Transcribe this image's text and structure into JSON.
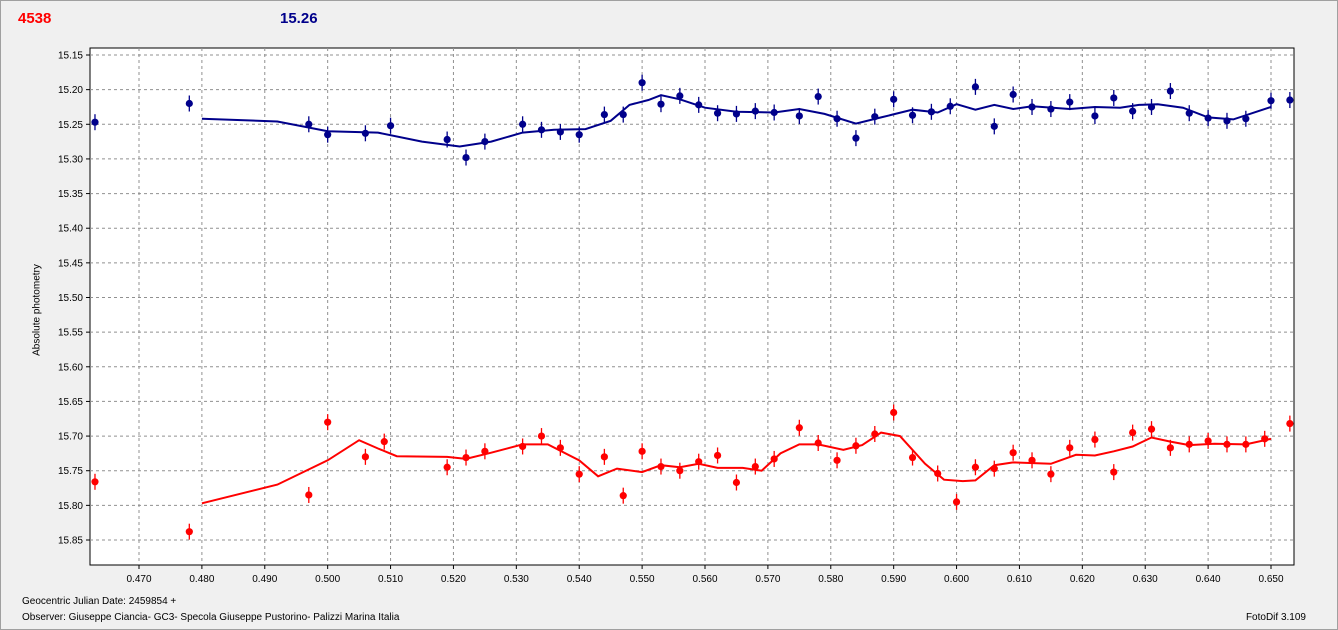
{
  "header": {
    "left_value": "4538",
    "right_value": "15.26"
  },
  "footer": {
    "jd_label": "Geocentric Julian Date: 2459854 +",
    "observer": "Observer: Giuseppe Ciancia- GC3- Specola Giuseppe Pustorino- Palizzi Marina Italia",
    "software": "FotoDif 3.109"
  },
  "colors": {
    "series_red": "#ff0000",
    "series_blue": "#00008b",
    "grid": "#909090",
    "background": "#f0f0f0"
  },
  "chart_data": {
    "type": "scatter",
    "ylabel": "Absolute photometry",
    "xlabel": "",
    "xlim": [
      0.4625,
      0.6535
    ],
    "ylim": [
      15.15,
      15.89
    ],
    "y_inverted": true,
    "xticks": [
      "0.470",
      "0.480",
      "0.490",
      "0.500",
      "0.510",
      "0.520",
      "0.530",
      "0.540",
      "0.550",
      "0.560",
      "0.570",
      "0.580",
      "0.590",
      "0.600",
      "0.610",
      "0.620",
      "0.630",
      "0.640",
      "0.650"
    ],
    "yticks": [
      "15.15",
      "15.20",
      "15.25",
      "15.30",
      "15.35",
      "15.40",
      "15.45",
      "15.50",
      "15.55",
      "15.60",
      "15.65",
      "15.70",
      "15.75",
      "15.80",
      "15.85"
    ],
    "grid": true,
    "series": [
      {
        "color": "#00008b",
        "points": [
          [
            0.463,
            15.247
          ],
          [
            0.478,
            15.22
          ],
          [
            0.497,
            15.25
          ],
          [
            0.5,
            15.265
          ],
          [
            0.506,
            15.263
          ],
          [
            0.51,
            15.252
          ],
          [
            0.519,
            15.272
          ],
          [
            0.522,
            15.298
          ],
          [
            0.525,
            15.275
          ],
          [
            0.531,
            15.25
          ],
          [
            0.534,
            15.258
          ],
          [
            0.537,
            15.261
          ],
          [
            0.54,
            15.265
          ],
          [
            0.544,
            15.236
          ],
          [
            0.547,
            15.236
          ],
          [
            0.55,
            15.19
          ],
          [
            0.553,
            15.221
          ],
          [
            0.556,
            15.209
          ],
          [
            0.559,
            15.222
          ],
          [
            0.562,
            15.234
          ],
          [
            0.565,
            15.235
          ],
          [
            0.568,
            15.231
          ],
          [
            0.571,
            15.233
          ],
          [
            0.575,
            15.238
          ],
          [
            0.578,
            15.21
          ],
          [
            0.581,
            15.242
          ],
          [
            0.584,
            15.27
          ],
          [
            0.587,
            15.239
          ],
          [
            0.59,
            15.214
          ],
          [
            0.593,
            15.237
          ],
          [
            0.596,
            15.232
          ],
          [
            0.599,
            15.224
          ],
          [
            0.603,
            15.196
          ],
          [
            0.606,
            15.253
          ],
          [
            0.609,
            15.207
          ],
          [
            0.612,
            15.225
          ],
          [
            0.615,
            15.228
          ],
          [
            0.618,
            15.218
          ],
          [
            0.622,
            15.238
          ],
          [
            0.625,
            15.212
          ],
          [
            0.628,
            15.231
          ],
          [
            0.631,
            15.225
          ],
          [
            0.634,
            15.202
          ],
          [
            0.637,
            15.234
          ],
          [
            0.64,
            15.241
          ],
          [
            0.643,
            15.245
          ],
          [
            0.646,
            15.242
          ],
          [
            0.65,
            15.216
          ],
          [
            0.653,
            15.215
          ]
        ],
        "trend": [
          [
            0.48,
            15.242
          ],
          [
            0.492,
            15.246
          ],
          [
            0.5,
            15.26
          ],
          [
            0.508,
            15.262
          ],
          [
            0.515,
            15.275
          ],
          [
            0.521,
            15.282
          ],
          [
            0.526,
            15.275
          ],
          [
            0.531,
            15.262
          ],
          [
            0.536,
            15.258
          ],
          [
            0.541,
            15.257
          ],
          [
            0.545,
            15.245
          ],
          [
            0.548,
            15.222
          ],
          [
            0.551,
            15.215
          ],
          [
            0.553,
            15.208
          ],
          [
            0.556,
            15.214
          ],
          [
            0.56,
            15.226
          ],
          [
            0.565,
            15.232
          ],
          [
            0.571,
            15.233
          ],
          [
            0.575,
            15.228
          ],
          [
            0.579,
            15.235
          ],
          [
            0.584,
            15.249
          ],
          [
            0.588,
            15.24
          ],
          [
            0.593,
            15.229
          ],
          [
            0.597,
            15.233
          ],
          [
            0.6,
            15.221
          ],
          [
            0.603,
            15.229
          ],
          [
            0.606,
            15.222
          ],
          [
            0.609,
            15.228
          ],
          [
            0.612,
            15.224
          ],
          [
            0.618,
            15.228
          ],
          [
            0.622,
            15.225
          ],
          [
            0.626,
            15.226
          ],
          [
            0.629,
            15.222
          ],
          [
            0.632,
            15.221
          ],
          [
            0.636,
            15.226
          ],
          [
            0.64,
            15.24
          ],
          [
            0.644,
            15.243
          ],
          [
            0.65,
            15.225
          ]
        ]
      },
      {
        "color": "#ff0000",
        "points": [
          [
            0.463,
            15.766
          ],
          [
            0.478,
            15.838
          ],
          [
            0.497,
            15.785
          ],
          [
            0.5,
            15.68
          ],
          [
            0.506,
            15.73
          ],
          [
            0.509,
            15.708
          ],
          [
            0.519,
            15.745
          ],
          [
            0.522,
            15.731
          ],
          [
            0.525,
            15.722
          ],
          [
            0.531,
            15.715
          ],
          [
            0.534,
            15.7
          ],
          [
            0.537,
            15.717
          ],
          [
            0.54,
            15.755
          ],
          [
            0.544,
            15.73
          ],
          [
            0.547,
            15.786
          ],
          [
            0.55,
            15.722
          ],
          [
            0.553,
            15.744
          ],
          [
            0.556,
            15.75
          ],
          [
            0.559,
            15.737
          ],
          [
            0.562,
            15.728
          ],
          [
            0.565,
            15.767
          ],
          [
            0.568,
            15.744
          ],
          [
            0.571,
            15.733
          ],
          [
            0.575,
            15.688
          ],
          [
            0.578,
            15.71
          ],
          [
            0.581,
            15.735
          ],
          [
            0.584,
            15.714
          ],
          [
            0.587,
            15.697
          ],
          [
            0.59,
            15.666
          ],
          [
            0.593,
            15.731
          ],
          [
            0.597,
            15.754
          ],
          [
            0.6,
            15.795
          ],
          [
            0.603,
            15.745
          ],
          [
            0.606,
            15.747
          ],
          [
            0.609,
            15.724
          ],
          [
            0.612,
            15.735
          ],
          [
            0.615,
            15.755
          ],
          [
            0.618,
            15.717
          ],
          [
            0.622,
            15.705
          ],
          [
            0.625,
            15.752
          ],
          [
            0.628,
            15.695
          ],
          [
            0.631,
            15.69
          ],
          [
            0.634,
            15.717
          ],
          [
            0.637,
            15.712
          ],
          [
            0.64,
            15.707
          ],
          [
            0.643,
            15.712
          ],
          [
            0.646,
            15.712
          ],
          [
            0.649,
            15.704
          ],
          [
            0.653,
            15.682
          ]
        ],
        "trend": [
          [
            0.48,
            15.797
          ],
          [
            0.492,
            15.77
          ],
          [
            0.5,
            15.735
          ],
          [
            0.505,
            15.706
          ],
          [
            0.508,
            15.718
          ],
          [
            0.511,
            15.729
          ],
          [
            0.519,
            15.73
          ],
          [
            0.522,
            15.733
          ],
          [
            0.526,
            15.724
          ],
          [
            0.531,
            15.712
          ],
          [
            0.535,
            15.712
          ],
          [
            0.54,
            15.735
          ],
          [
            0.543,
            15.758
          ],
          [
            0.546,
            15.747
          ],
          [
            0.55,
            15.752
          ],
          [
            0.553,
            15.742
          ],
          [
            0.556,
            15.745
          ],
          [
            0.559,
            15.74
          ],
          [
            0.562,
            15.746
          ],
          [
            0.566,
            15.746
          ],
          [
            0.569,
            15.75
          ],
          [
            0.572,
            15.725
          ],
          [
            0.575,
            15.712
          ],
          [
            0.578,
            15.712
          ],
          [
            0.582,
            15.72
          ],
          [
            0.585,
            15.713
          ],
          [
            0.588,
            15.695
          ],
          [
            0.591,
            15.7
          ],
          [
            0.595,
            15.74
          ],
          [
            0.598,
            15.763
          ],
          [
            0.601,
            15.765
          ],
          [
            0.603,
            15.764
          ],
          [
            0.606,
            15.742
          ],
          [
            0.609,
            15.738
          ],
          [
            0.615,
            15.74
          ],
          [
            0.619,
            15.727
          ],
          [
            0.622,
            15.728
          ],
          [
            0.625,
            15.722
          ],
          [
            0.628,
            15.715
          ],
          [
            0.631,
            15.702
          ],
          [
            0.634,
            15.708
          ],
          [
            0.637,
            15.713
          ],
          [
            0.641,
            15.711
          ],
          [
            0.646,
            15.712
          ],
          [
            0.65,
            15.704
          ]
        ]
      }
    ]
  }
}
